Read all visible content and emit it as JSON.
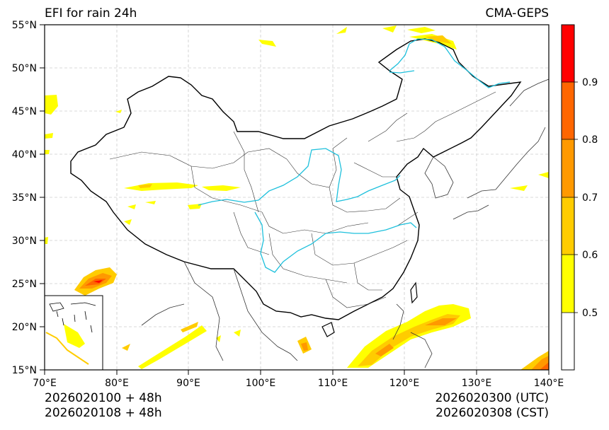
{
  "header": {
    "title": "EFI for rain 24h",
    "model": "CMA-GEPS"
  },
  "footer": {
    "init_utc": "2026020100 + 48h",
    "init_cst": "2026020108 + 48h",
    "valid_utc": "2026020300 (UTC)",
    "valid_cst": "2026020308 (CST)"
  },
  "map": {
    "lon_range": [
      70,
      140
    ],
    "lat_range": [
      15,
      55
    ],
    "lon_ticks": [
      "70°E",
      "80°E",
      "90°E",
      "100°E",
      "110°E",
      "120°E",
      "130°E",
      "140°E"
    ],
    "lat_ticks": [
      "15°N",
      "20°N",
      "25°N",
      "30°N",
      "35°N",
      "40°N",
      "45°N",
      "50°N",
      "55°N"
    ],
    "colors": {
      "border": "#000000",
      "province": "#222222",
      "river": "#1ec0dc",
      "grid": "#cccccc"
    }
  },
  "colorbar": {
    "levels": [
      "0.5",
      "0.6",
      "0.7",
      "0.8",
      "0.9"
    ],
    "colors": [
      "#ffffff",
      "#ffff00",
      "#ffcc00",
      "#ff9900",
      "#ff6600",
      "#ff0000"
    ]
  }
}
